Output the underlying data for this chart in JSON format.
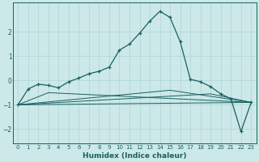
{
  "xlabel": "Humidex (Indice chaleur)",
  "background_color": "#cce8e8",
  "grid_color": "#afd4d4",
  "line_color": "#1a6060",
  "xlim": [
    -0.5,
    23.5
  ],
  "ylim": [
    -2.6,
    3.2
  ],
  "xticks": [
    0,
    1,
    2,
    3,
    4,
    5,
    6,
    7,
    8,
    9,
    10,
    11,
    12,
    13,
    14,
    15,
    16,
    17,
    18,
    19,
    20,
    21,
    22,
    23
  ],
  "yticks": [
    -2,
    -1,
    0,
    1,
    2
  ],
  "main_x": [
    0,
    1,
    2,
    3,
    4,
    5,
    6,
    7,
    8,
    9,
    10,
    11,
    12,
    13,
    14,
    15,
    16,
    17,
    18,
    19,
    20,
    21,
    22,
    23
  ],
  "main_y": [
    -1.0,
    -0.35,
    -0.15,
    -0.2,
    -0.3,
    -0.05,
    0.1,
    0.28,
    0.38,
    0.55,
    1.25,
    1.5,
    1.95,
    2.45,
    2.85,
    2.6,
    1.6,
    0.05,
    -0.05,
    -0.25,
    -0.55,
    -0.75,
    -2.1,
    -0.9
  ],
  "fan_lines": [
    {
      "x": [
        0,
        23
      ],
      "y": [
        -1.0,
        -0.9
      ]
    },
    {
      "x": [
        0,
        19,
        23
      ],
      "y": [
        -1.0,
        -0.55,
        -0.9
      ]
    },
    {
      "x": [
        0,
        15,
        23
      ],
      "y": [
        -1.0,
        -0.4,
        -0.9
      ]
    },
    {
      "x": [
        0,
        3,
        23
      ],
      "y": [
        -1.0,
        -0.5,
        -0.9
      ]
    }
  ]
}
